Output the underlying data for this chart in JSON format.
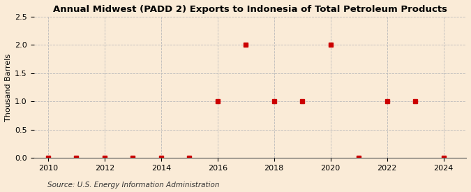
{
  "title": "Annual Midwest (PADD 2) Exports to Indonesia of Total Petroleum Products",
  "ylabel": "Thousand Barrels",
  "source": "Source: U.S. Energy Information Administration",
  "years": [
    2010,
    2011,
    2012,
    2013,
    2014,
    2015,
    2016,
    2017,
    2018,
    2019,
    2020,
    2021,
    2022,
    2023,
    2024
  ],
  "values": [
    0,
    0,
    0,
    0,
    0,
    0,
    1,
    2,
    1,
    1,
    2,
    0,
    1,
    1,
    0
  ],
  "marker_color": "#cc0000",
  "marker_size": 4,
  "bg_color": "#faebd7",
  "plot_bg_color": "#faebd7",
  "grid_color": "#bbbbbb",
  "xlim": [
    2009.5,
    2024.8
  ],
  "ylim": [
    0,
    2.5
  ],
  "yticks": [
    0.0,
    0.5,
    1.0,
    1.5,
    2.0,
    2.5
  ],
  "xticks": [
    2010,
    2012,
    2014,
    2016,
    2018,
    2020,
    2022,
    2024
  ],
  "title_fontsize": 9.5,
  "label_fontsize": 8,
  "tick_fontsize": 8,
  "source_fontsize": 7.5
}
